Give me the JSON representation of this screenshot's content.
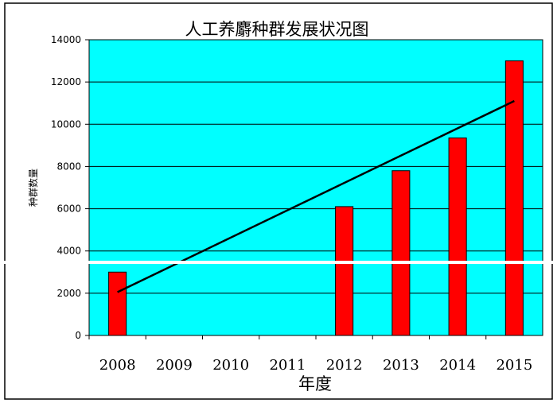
{
  "chart_data": {
    "type": "bar",
    "title": "人工养麝种群发展状况图",
    "xlabel": "年度",
    "ylabel": "种群数量",
    "categories": [
      "2008",
      "2009",
      "2010",
      "2011",
      "2012",
      "2013",
      "2014",
      "2015"
    ],
    "series": [
      {
        "values": [
          3000,
          0,
          0,
          0,
          6100,
          7800,
          9350,
          13000
        ]
      }
    ],
    "trendline": {
      "start": 2050,
      "end": 11100
    },
    "ylim": [
      0,
      14000
    ],
    "yticks": [
      0,
      2000,
      4000,
      6000,
      8000,
      10000,
      12000,
      14000
    ],
    "grid": true,
    "colors": {
      "plot_bg": "#00ffff",
      "bar": "#ff0000",
      "grid": "#000000",
      "trend": "#000000"
    }
  }
}
